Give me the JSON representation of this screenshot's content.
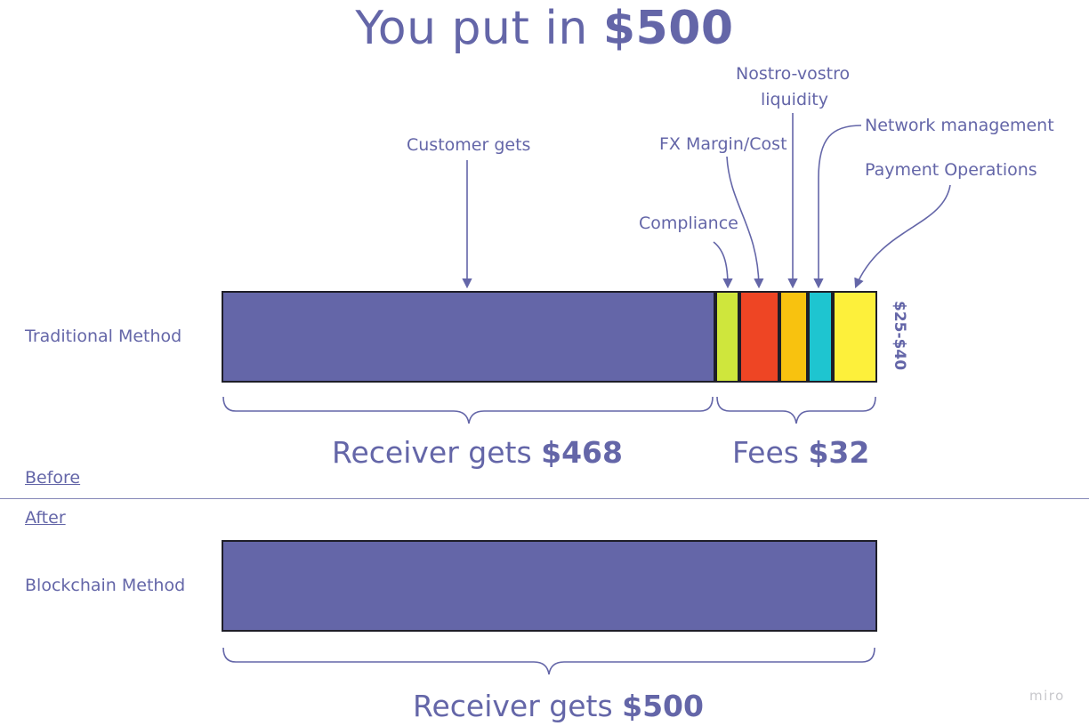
{
  "title": {
    "prefix": "You put in ",
    "amount": "$500"
  },
  "annotations": {
    "customer_gets": "Customer gets",
    "nostro_line1": "Nostro-vostro",
    "nostro_line2": "liquidity",
    "network_management": "Network management",
    "fx_margin": "FX Margin/Cost",
    "payment_operations": "Payment Operations",
    "compliance": "Compliance"
  },
  "traditional": {
    "label": "Traditional Method",
    "range": "$25-$40",
    "receiver_prefix": "Receiver gets ",
    "receiver_amount": "$468",
    "fees_prefix": "Fees ",
    "fees_amount": "$32"
  },
  "sections": {
    "before": "Before",
    "after": "After"
  },
  "blockchain": {
    "label": "Blockchain Method",
    "receiver_prefix": "Receiver gets ",
    "receiver_amount": "$500"
  },
  "watermark": "miro",
  "colors": {
    "main": "#6466a8",
    "compliance": "#cfe63c",
    "fx_margin": "#ee4524",
    "nostro_vostro": "#f8c20f",
    "network_management": "#1ec5d0",
    "payment_operations": "#fdf03b",
    "outline": "#1e1e28"
  }
}
